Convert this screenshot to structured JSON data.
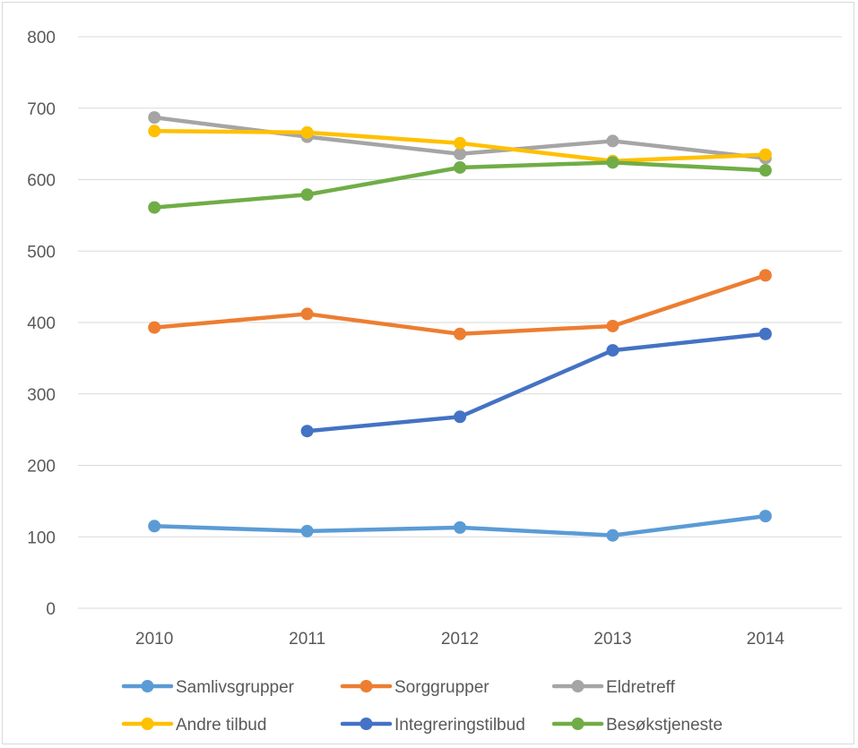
{
  "chart_data": {
    "type": "line",
    "title": "",
    "xlabel": "",
    "ylabel": "",
    "ylim": [
      0,
      800
    ],
    "yticks": [
      0,
      100,
      200,
      300,
      400,
      500,
      600,
      700,
      800
    ],
    "categories": [
      "2010",
      "2011",
      "2012",
      "2013",
      "2014"
    ],
    "grid": "horizontal",
    "legend_position": "bottom",
    "series": [
      {
        "name": "Samlivsgrupper",
        "color": "#5b9bd5",
        "values": [
          115,
          108,
          113,
          102,
          129
        ]
      },
      {
        "name": "Sorggrupper",
        "color": "#ed7d31",
        "values": [
          393,
          412,
          384,
          395,
          466
        ]
      },
      {
        "name": "Eldretreff",
        "color": "#a5a5a5",
        "values": [
          687,
          660,
          636,
          654,
          630
        ]
      },
      {
        "name": "Andre tilbud",
        "color": "#ffc000",
        "values": [
          668,
          666,
          651,
          626,
          635
        ]
      },
      {
        "name": "Integreringstilbud",
        "color": "#4472c4",
        "values": [
          null,
          248,
          268,
          361,
          384
        ]
      },
      {
        "name": "Besøkstjeneste",
        "color": "#70ad47",
        "values": [
          561,
          579,
          617,
          624,
          613
        ]
      }
    ]
  }
}
